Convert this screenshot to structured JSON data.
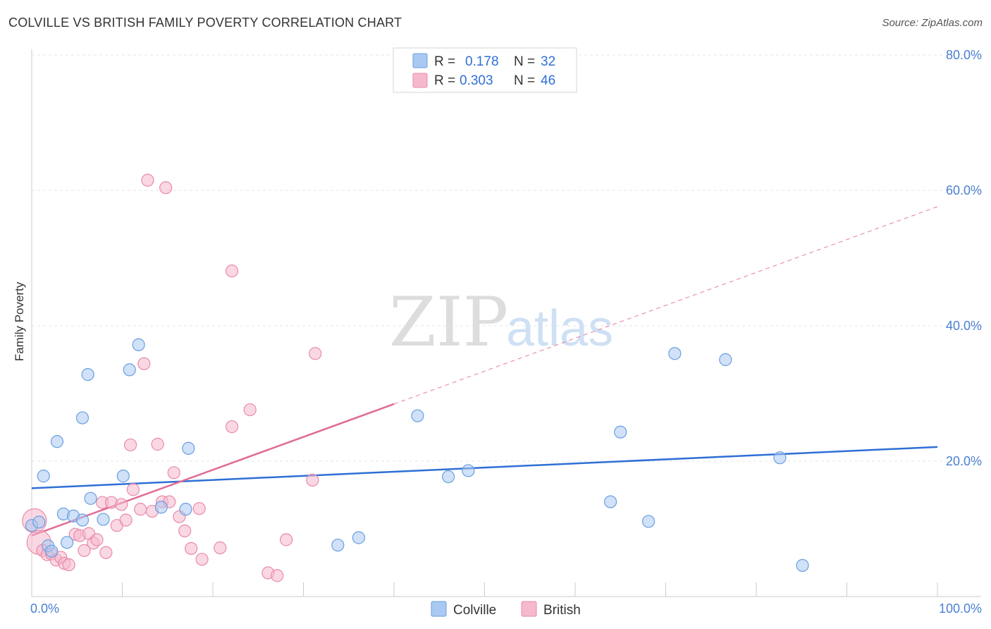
{
  "header": {
    "title": "COLVILLE VS BRITISH FAMILY POVERTY CORRELATION CHART",
    "source": "Source: ZipAtlas.com"
  },
  "watermark": {
    "zip": "ZIP",
    "atlas": "atlas"
  },
  "colors": {
    "colville_fill": "#a9c9f2",
    "colville_stroke": "#6a9fe0",
    "colville_line": "#2f6fd6",
    "british_fill": "#f6b8cc",
    "british_stroke": "#e98aa8",
    "british_line": "#e06b94",
    "grid": "#e6e6e6",
    "axis": "#cccccc",
    "tick_label": "#4a7fd4"
  },
  "legend": {
    "top": [
      {
        "series": "Colville",
        "r_label": "R =",
        "r_value": "0.178",
        "n_label": "N =",
        "n_value": "32"
      },
      {
        "series": "British",
        "r_label": "R =",
        "r_value": "0.303",
        "n_label": "N =",
        "n_value": "46"
      }
    ],
    "bottom": [
      "Colville",
      "British"
    ]
  },
  "chart_data": {
    "type": "scatter",
    "title": "COLVILLE VS BRITISH FAMILY POVERTY CORRELATION CHART",
    "xlabel": "",
    "ylabel": "Family Poverty",
    "xlim": [
      0,
      100
    ],
    "ylim": [
      0,
      82
    ],
    "x_tick_labels": [
      "0.0%",
      "100.0%"
    ],
    "y_ticks": [
      20,
      40,
      60,
      80
    ],
    "y_tick_labels": [
      "20.0%",
      "40.0%",
      "60.0%",
      "80.0%"
    ],
    "grid": true,
    "legend_position": "top-center",
    "series": [
      {
        "name": "Colville",
        "r": 0.178,
        "n": 32,
        "trend": {
          "x": [
            0,
            100
          ],
          "y": [
            16.0,
            22.1
          ],
          "solid_until": 100
        },
        "points": [
          {
            "x": 0.0,
            "y": 10.5,
            "big": false
          },
          {
            "x": 0.8,
            "y": 11.0,
            "big": false
          },
          {
            "x": 1.3,
            "y": 17.8,
            "big": false
          },
          {
            "x": 1.8,
            "y": 7.5,
            "big": false
          },
          {
            "x": 2.2,
            "y": 6.7,
            "big": false
          },
          {
            "x": 2.8,
            "y": 22.9,
            "big": false
          },
          {
            "x": 3.5,
            "y": 12.2,
            "big": false
          },
          {
            "x": 3.9,
            "y": 8.0,
            "big": false
          },
          {
            "x": 4.6,
            "y": 11.9,
            "big": false
          },
          {
            "x": 5.6,
            "y": 26.4,
            "big": false
          },
          {
            "x": 5.6,
            "y": 11.3,
            "big": false
          },
          {
            "x": 6.2,
            "y": 32.8,
            "big": false
          },
          {
            "x": 6.5,
            "y": 14.5,
            "big": false
          },
          {
            "x": 7.9,
            "y": 11.4,
            "big": false
          },
          {
            "x": 10.1,
            "y": 17.8,
            "big": false
          },
          {
            "x": 10.8,
            "y": 33.5,
            "big": false
          },
          {
            "x": 11.8,
            "y": 37.2,
            "big": false
          },
          {
            "x": 14.3,
            "y": 13.2,
            "big": false
          },
          {
            "x": 17.0,
            "y": 12.9,
            "big": false
          },
          {
            "x": 17.3,
            "y": 21.9,
            "big": false
          },
          {
            "x": 33.8,
            "y": 7.6,
            "big": false
          },
          {
            "x": 36.1,
            "y": 8.7,
            "big": false
          },
          {
            "x": 42.6,
            "y": 26.7,
            "big": false
          },
          {
            "x": 46.0,
            "y": 17.7,
            "big": false
          },
          {
            "x": 48.2,
            "y": 18.6,
            "big": false
          },
          {
            "x": 63.9,
            "y": 14.0,
            "big": false
          },
          {
            "x": 65.0,
            "y": 24.3,
            "big": false
          },
          {
            "x": 68.1,
            "y": 11.1,
            "big": false
          },
          {
            "x": 71.0,
            "y": 35.9,
            "big": false
          },
          {
            "x": 76.6,
            "y": 35.0,
            "big": false
          },
          {
            "x": 82.6,
            "y": 20.5,
            "big": false
          },
          {
            "x": 85.1,
            "y": 4.6,
            "big": false
          }
        ]
      },
      {
        "name": "British",
        "r": 0.303,
        "n": 46,
        "trend": {
          "x": [
            0,
            100
          ],
          "y": [
            9.0,
            57.6
          ],
          "solid_until": 40
        },
        "points": [
          {
            "x": 0.3,
            "y": 11.2,
            "big": true
          },
          {
            "x": 0.8,
            "y": 8.0,
            "big": true
          },
          {
            "x": 1.2,
            "y": 6.8,
            "big": false
          },
          {
            "x": 1.7,
            "y": 6.2,
            "big": false
          },
          {
            "x": 2.2,
            "y": 6.3,
            "big": false
          },
          {
            "x": 2.7,
            "y": 5.4,
            "big": false
          },
          {
            "x": 3.2,
            "y": 5.8,
            "big": false
          },
          {
            "x": 3.6,
            "y": 4.9,
            "big": false
          },
          {
            "x": 4.1,
            "y": 4.7,
            "big": false
          },
          {
            "x": 4.8,
            "y": 9.2,
            "big": false
          },
          {
            "x": 5.3,
            "y": 9.0,
            "big": false
          },
          {
            "x": 5.8,
            "y": 6.8,
            "big": false
          },
          {
            "x": 6.3,
            "y": 9.3,
            "big": false
          },
          {
            "x": 6.8,
            "y": 7.9,
            "big": false
          },
          {
            "x": 7.2,
            "y": 8.4,
            "big": false
          },
          {
            "x": 7.8,
            "y": 13.9,
            "big": false
          },
          {
            "x": 8.2,
            "y": 6.5,
            "big": false
          },
          {
            "x": 8.8,
            "y": 13.9,
            "big": false
          },
          {
            "x": 9.4,
            "y": 10.5,
            "big": false
          },
          {
            "x": 9.9,
            "y": 13.6,
            "big": false
          },
          {
            "x": 10.4,
            "y": 11.3,
            "big": false
          },
          {
            "x": 10.9,
            "y": 22.4,
            "big": false
          },
          {
            "x": 11.2,
            "y": 15.8,
            "big": false
          },
          {
            "x": 12.0,
            "y": 12.9,
            "big": false
          },
          {
            "x": 12.4,
            "y": 34.4,
            "big": false
          },
          {
            "x": 12.8,
            "y": 61.5,
            "big": false
          },
          {
            "x": 13.3,
            "y": 12.6,
            "big": false
          },
          {
            "x": 13.9,
            "y": 22.5,
            "big": false
          },
          {
            "x": 14.4,
            "y": 14.0,
            "big": false
          },
          {
            "x": 14.8,
            "y": 60.4,
            "big": false
          },
          {
            "x": 15.2,
            "y": 14.0,
            "big": false
          },
          {
            "x": 15.7,
            "y": 18.3,
            "big": false
          },
          {
            "x": 16.3,
            "y": 11.8,
            "big": false
          },
          {
            "x": 16.9,
            "y": 9.7,
            "big": false
          },
          {
            "x": 17.6,
            "y": 7.1,
            "big": false
          },
          {
            "x": 18.5,
            "y": 13.0,
            "big": false
          },
          {
            "x": 18.8,
            "y": 5.5,
            "big": false
          },
          {
            "x": 20.8,
            "y": 7.2,
            "big": false
          },
          {
            "x": 22.1,
            "y": 25.1,
            "big": false
          },
          {
            "x": 22.1,
            "y": 48.1,
            "big": false
          },
          {
            "x": 24.1,
            "y": 27.6,
            "big": false
          },
          {
            "x": 26.1,
            "y": 3.5,
            "big": false
          },
          {
            "x": 27.1,
            "y": 3.1,
            "big": false
          },
          {
            "x": 28.1,
            "y": 8.4,
            "big": false
          },
          {
            "x": 31.0,
            "y": 17.2,
            "big": false
          },
          {
            "x": 31.3,
            "y": 35.9,
            "big": false
          }
        ]
      }
    ]
  }
}
